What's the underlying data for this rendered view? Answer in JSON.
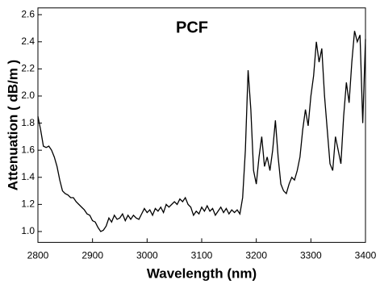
{
  "chart_data": {
    "type": "line",
    "title": "PCF",
    "x_label": "Wavelength (nm)",
    "y_label": "Attenuation ( dB/m )",
    "xlim": [
      2800,
      3400
    ],
    "ylim": [
      0.92,
      2.65
    ],
    "xticks": [
      2800,
      2900,
      3000,
      3100,
      3200,
      3300,
      3400
    ],
    "yticks": [
      {
        "value": 1.0,
        "label": "1.0"
      },
      1.2,
      1.4,
      1.6,
      1.8,
      {
        "value": 2.0,
        "label": "2.0"
      },
      2.2,
      2.4,
      2.6
    ],
    "grid": false,
    "x": [
      2800,
      2805,
      2810,
      2815,
      2820,
      2825,
      2830,
      2835,
      2840,
      2845,
      2850,
      2855,
      2860,
      2865,
      2870,
      2875,
      2880,
      2885,
      2890,
      2895,
      2900,
      2905,
      2910,
      2915,
      2920,
      2925,
      2930,
      2935,
      2940,
      2945,
      2950,
      2955,
      2960,
      2965,
      2970,
      2975,
      2980,
      2985,
      2990,
      2995,
      3000,
      3005,
      3010,
      3015,
      3020,
      3025,
      3030,
      3035,
      3040,
      3045,
      3050,
      3055,
      3060,
      3065,
      3070,
      3075,
      3080,
      3085,
      3090,
      3095,
      3100,
      3105,
      3110,
      3115,
      3120,
      3125,
      3130,
      3135,
      3140,
      3145,
      3150,
      3155,
      3160,
      3165,
      3170,
      3175,
      3180,
      3185,
      3190,
      3195,
      3200,
      3205,
      3210,
      3215,
      3220,
      3225,
      3230,
      3235,
      3240,
      3245,
      3250,
      3255,
      3260,
      3265,
      3270,
      3275,
      3280,
      3285,
      3290,
      3295,
      3300,
      3305,
      3310,
      3315,
      3320,
      3325,
      3330,
      3335,
      3340,
      3345,
      3350,
      3355,
      3360,
      3365,
      3370,
      3375,
      3380,
      3385,
      3390,
      3395,
      3400
    ],
    "series": [
      {
        "color": "#000000",
        "values": [
          1.85,
          1.75,
          1.63,
          1.62,
          1.63,
          1.6,
          1.55,
          1.48,
          1.38,
          1.3,
          1.28,
          1.27,
          1.25,
          1.25,
          1.22,
          1.2,
          1.18,
          1.16,
          1.13,
          1.12,
          1.08,
          1.07,
          1.03,
          1.0,
          1.01,
          1.04,
          1.1,
          1.07,
          1.12,
          1.09,
          1.1,
          1.13,
          1.08,
          1.12,
          1.09,
          1.12,
          1.1,
          1.09,
          1.13,
          1.17,
          1.14,
          1.16,
          1.12,
          1.17,
          1.15,
          1.18,
          1.14,
          1.2,
          1.18,
          1.2,
          1.22,
          1.2,
          1.24,
          1.22,
          1.25,
          1.2,
          1.18,
          1.12,
          1.15,
          1.13,
          1.18,
          1.15,
          1.19,
          1.15,
          1.17,
          1.12,
          1.15,
          1.18,
          1.14,
          1.17,
          1.13,
          1.16,
          1.14,
          1.16,
          1.13,
          1.25,
          1.6,
          2.19,
          1.9,
          1.45,
          1.35,
          1.55,
          1.7,
          1.48,
          1.55,
          1.45,
          1.6,
          1.82,
          1.55,
          1.35,
          1.3,
          1.28,
          1.35,
          1.4,
          1.38,
          1.45,
          1.55,
          1.75,
          1.9,
          1.78,
          2.0,
          2.15,
          2.4,
          2.25,
          2.35,
          2.0,
          1.75,
          1.5,
          1.45,
          1.7,
          1.6,
          1.5,
          1.85,
          2.1,
          1.95,
          2.25,
          2.48,
          2.4,
          2.45,
          1.8,
          2.42
        ]
      }
    ]
  }
}
